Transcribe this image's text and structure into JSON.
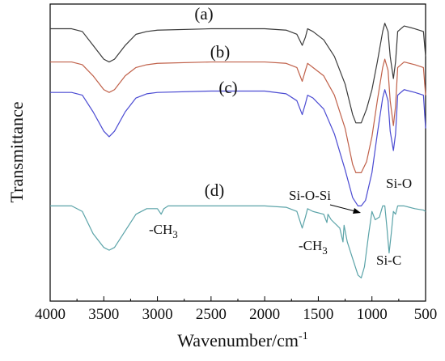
{
  "chart_data": {
    "type": "line",
    "title": "",
    "xlabel": "Wavenumber/cm",
    "xlabel_superscript": "-1",
    "ylabel": "Transmittance",
    "xlim": [
      4000,
      500
    ],
    "x_reversed": true,
    "y_ticks_shown": false,
    "grid": false,
    "x_ticks": [
      4000,
      3500,
      3000,
      2500,
      2000,
      1500,
      1000,
      500
    ],
    "x_tick_labels": [
      "4000",
      "3500",
      "3000",
      "2500",
      "2000",
      "1500",
      "1000",
      "500"
    ],
    "series": [
      {
        "name": "(a)",
        "color": "#3a3a3a",
        "points": [
          [
            4000,
            0.94
          ],
          [
            3800,
            0.94
          ],
          [
            3700,
            0.93
          ],
          [
            3600,
            0.88
          ],
          [
            3500,
            0.83
          ],
          [
            3450,
            0.82
          ],
          [
            3400,
            0.83
          ],
          [
            3300,
            0.88
          ],
          [
            3200,
            0.92
          ],
          [
            3100,
            0.93
          ],
          [
            3000,
            0.935
          ],
          [
            2500,
            0.94
          ],
          [
            2000,
            0.94
          ],
          [
            1800,
            0.935
          ],
          [
            1700,
            0.92
          ],
          [
            1650,
            0.88
          ],
          [
            1620,
            0.91
          ],
          [
            1600,
            0.94
          ],
          [
            1550,
            0.93
          ],
          [
            1450,
            0.9
          ],
          [
            1350,
            0.84
          ],
          [
            1250,
            0.74
          ],
          [
            1180,
            0.63
          ],
          [
            1150,
            0.6
          ],
          [
            1100,
            0.6
          ],
          [
            1050,
            0.65
          ],
          [
            1000,
            0.72
          ],
          [
            950,
            0.82
          ],
          [
            900,
            0.93
          ],
          [
            880,
            0.96
          ],
          [
            850,
            0.93
          ],
          [
            830,
            0.84
          ],
          [
            800,
            0.76
          ],
          [
            780,
            0.82
          ],
          [
            760,
            0.93
          ],
          [
            700,
            0.95
          ],
          [
            600,
            0.94
          ],
          [
            520,
            0.93
          ],
          [
            500,
            0.84
          ]
        ]
      },
      {
        "name": "(b)",
        "color": "#c0614a",
        "points": [
          [
            4000,
            0.82
          ],
          [
            3800,
            0.82
          ],
          [
            3700,
            0.81
          ],
          [
            3600,
            0.77
          ],
          [
            3500,
            0.72
          ],
          [
            3450,
            0.71
          ],
          [
            3400,
            0.72
          ],
          [
            3300,
            0.77
          ],
          [
            3200,
            0.8
          ],
          [
            3100,
            0.81
          ],
          [
            3000,
            0.815
          ],
          [
            2500,
            0.82
          ],
          [
            2000,
            0.82
          ],
          [
            1800,
            0.815
          ],
          [
            1700,
            0.8
          ],
          [
            1650,
            0.75
          ],
          [
            1620,
            0.79
          ],
          [
            1600,
            0.815
          ],
          [
            1550,
            0.8
          ],
          [
            1450,
            0.77
          ],
          [
            1350,
            0.7
          ],
          [
            1250,
            0.58
          ],
          [
            1180,
            0.45
          ],
          [
            1150,
            0.42
          ],
          [
            1100,
            0.42
          ],
          [
            1050,
            0.46
          ],
          [
            1000,
            0.55
          ],
          [
            950,
            0.68
          ],
          [
            900,
            0.8
          ],
          [
            880,
            0.83
          ],
          [
            850,
            0.79
          ],
          [
            830,
            0.68
          ],
          [
            800,
            0.59
          ],
          [
            780,
            0.66
          ],
          [
            760,
            0.8
          ],
          [
            700,
            0.82
          ],
          [
            600,
            0.81
          ],
          [
            520,
            0.8
          ],
          [
            500,
            0.7
          ]
        ]
      },
      {
        "name": "(c)",
        "color": "#4a4ad2",
        "points": [
          [
            4000,
            0.71
          ],
          [
            3800,
            0.71
          ],
          [
            3700,
            0.7
          ],
          [
            3600,
            0.64
          ],
          [
            3500,
            0.57
          ],
          [
            3450,
            0.55
          ],
          [
            3400,
            0.57
          ],
          [
            3300,
            0.64
          ],
          [
            3200,
            0.69
          ],
          [
            3100,
            0.705
          ],
          [
            3000,
            0.71
          ],
          [
            2500,
            0.715
          ],
          [
            2000,
            0.715
          ],
          [
            1800,
            0.705
          ],
          [
            1700,
            0.68
          ],
          [
            1650,
            0.63
          ],
          [
            1620,
            0.67
          ],
          [
            1600,
            0.7
          ],
          [
            1550,
            0.69
          ],
          [
            1450,
            0.65
          ],
          [
            1350,
            0.56
          ],
          [
            1250,
            0.43
          ],
          [
            1180,
            0.33
          ],
          [
            1130,
            0.3
          ],
          [
            1100,
            0.3
          ],
          [
            1060,
            0.32
          ],
          [
            1000,
            0.42
          ],
          [
            950,
            0.56
          ],
          [
            900,
            0.69
          ],
          [
            880,
            0.72
          ],
          [
            850,
            0.68
          ],
          [
            830,
            0.57
          ],
          [
            800,
            0.5
          ],
          [
            780,
            0.56
          ],
          [
            760,
            0.7
          ],
          [
            700,
            0.72
          ],
          [
            600,
            0.71
          ],
          [
            520,
            0.7
          ],
          [
            500,
            0.58
          ]
        ]
      },
      {
        "name": "(d)",
        "color": "#5aa3a8",
        "points": [
          [
            4000,
            0.3
          ],
          [
            3800,
            0.3
          ],
          [
            3700,
            0.28
          ],
          [
            3600,
            0.2
          ],
          [
            3500,
            0.15
          ],
          [
            3450,
            0.14
          ],
          [
            3400,
            0.15
          ],
          [
            3300,
            0.21
          ],
          [
            3200,
            0.27
          ],
          [
            3100,
            0.29
          ],
          [
            3000,
            0.29
          ],
          [
            2965,
            0.27
          ],
          [
            2940,
            0.29
          ],
          [
            2900,
            0.3
          ],
          [
            2500,
            0.3
          ],
          [
            2000,
            0.3
          ],
          [
            1800,
            0.295
          ],
          [
            1700,
            0.28
          ],
          [
            1650,
            0.22
          ],
          [
            1620,
            0.26
          ],
          [
            1600,
            0.29
          ],
          [
            1550,
            0.28
          ],
          [
            1450,
            0.27
          ],
          [
            1420,
            0.24
          ],
          [
            1410,
            0.27
          ],
          [
            1380,
            0.25
          ],
          [
            1300,
            0.22
          ],
          [
            1270,
            0.17
          ],
          [
            1260,
            0.23
          ],
          [
            1230,
            0.17
          ],
          [
            1180,
            0.11
          ],
          [
            1130,
            0.05
          ],
          [
            1100,
            0.04
          ],
          [
            1070,
            0.08
          ],
          [
            1030,
            0.2
          ],
          [
            1000,
            0.28
          ],
          [
            970,
            0.25
          ],
          [
            930,
            0.26
          ],
          [
            900,
            0.3
          ],
          [
            880,
            0.3
          ],
          [
            860,
            0.22
          ],
          [
            840,
            0.13
          ],
          [
            820,
            0.2
          ],
          [
            800,
            0.28
          ],
          [
            780,
            0.27
          ],
          [
            760,
            0.3
          ],
          [
            700,
            0.3
          ],
          [
            600,
            0.29
          ],
          [
            520,
            0.285
          ],
          [
            500,
            0.28
          ]
        ]
      }
    ],
    "annotations": [
      {
        "text": "-CH",
        "subscript": "3",
        "near_x": 2950
      },
      {
        "text": "-CH",
        "subscript": "3",
        "near_x": 1400
      },
      {
        "text": "Si-O-Si",
        "near_x": 1100,
        "arrow": true
      },
      {
        "text": "Si-O",
        "near_x": 780
      },
      {
        "text": "Si-C",
        "near_x": 840
      }
    ]
  }
}
